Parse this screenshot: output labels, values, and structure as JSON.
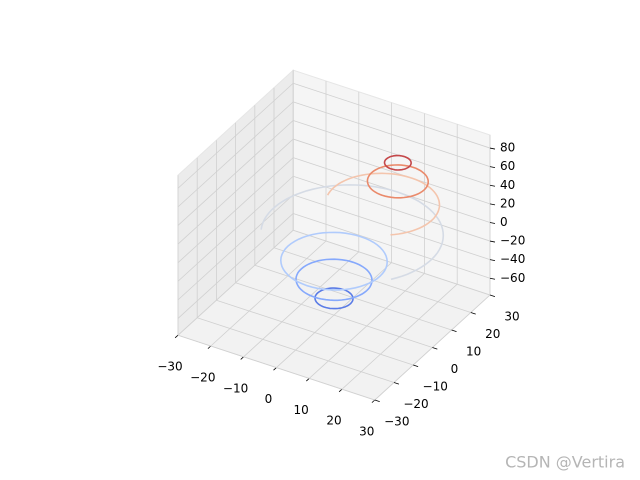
{
  "chart_data": {
    "type": "contour3d",
    "xlim": [
      -30,
      30
    ],
    "ylim": [
      -30,
      30
    ],
    "zlim": [
      -78,
      94
    ],
    "xticks": [
      {
        "value": -30,
        "label": "−30"
      },
      {
        "value": -20,
        "label": "−20"
      },
      {
        "value": -10,
        "label": "−10"
      },
      0,
      10,
      20,
      30
    ],
    "yticks": [
      {
        "value": -30,
        "label": "−30"
      },
      {
        "value": -20,
        "label": "−20"
      },
      {
        "value": -10,
        "label": "−10"
      },
      0,
      10,
      20,
      30
    ],
    "zticks": [
      {
        "value": -60,
        "label": "−60"
      },
      {
        "value": -40,
        "label": "−40"
      },
      {
        "value": -20,
        "label": "−20"
      },
      0,
      20,
      40,
      60,
      80
    ],
    "levels": [
      -60,
      -40,
      -20,
      0,
      20,
      40,
      60
    ],
    "colors": [
      "#5b7ce6",
      "#86a9fc",
      "#b0cbfc",
      "#d5dbe5",
      "#f4c5ad",
      "#ea8a6b",
      "#c5484a"
    ],
    "grid": true,
    "watermark": "CSDN @Vertira"
  }
}
